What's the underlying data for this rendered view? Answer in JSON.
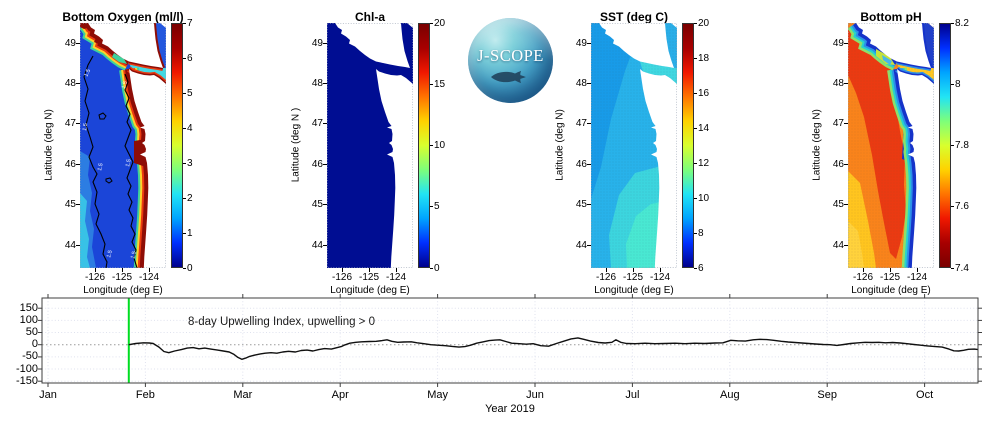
{
  "panels": [
    {
      "title": "Bottom Oxygen (ml/l)",
      "ylabel": "Latitude (deg N)",
      "xlabel": "Longitude (deg E)",
      "yticks": [
        49,
        48,
        47,
        46,
        45,
        44
      ],
      "xticks": [
        -126,
        -125,
        -124
      ],
      "contour_label": "1.5",
      "colorbar": {
        "min": 0,
        "max": 7,
        "reversed": false,
        "ticks": [
          {
            "value": 0,
            "label": "0"
          },
          {
            "value": 1,
            "label": "1"
          },
          {
            "value": 2,
            "label": "2"
          },
          {
            "value": 3,
            "label": "3"
          },
          {
            "value": 4,
            "label": "4"
          },
          {
            "value": 5,
            "label": "5"
          },
          {
            "value": 6,
            "label": "6"
          },
          {
            "value": 7,
            "label": "7"
          }
        ]
      },
      "map_colors": {
        "ocean": "#1b45d8",
        "region1": "#2c7de2",
        "region2": "#38c2e6",
        "band1": "#3ed29b",
        "band2": "#ffd12b",
        "band3": "#ea3a10",
        "band4": "#8e0d06",
        "strait": "#43d8e2",
        "georgia": "#2357de",
        "land": "#ffffff"
      }
    },
    {
      "title": "Chl-a",
      "ylabel": "Latitude (deg N )",
      "xlabel": "Longitude (deg E)",
      "yticks": [
        49,
        48,
        47,
        46,
        45,
        44
      ],
      "xticks": [
        -126,
        -125,
        -124
      ],
      "contour_label": "",
      "colorbar": {
        "min": 0,
        "max": 20,
        "reversed": false,
        "ticks": [
          {
            "value": 0,
            "label": "0"
          },
          {
            "value": 5,
            "label": "5"
          },
          {
            "value": 10,
            "label": "10"
          },
          {
            "value": 15,
            "label": "15"
          },
          {
            "value": 20,
            "label": "20"
          }
        ]
      },
      "map_colors": {
        "ocean": "#000d92",
        "strait": "#000d92",
        "georgia": "#000d92",
        "land": "#ffffff"
      }
    },
    {
      "title": "SST (deg C)",
      "ylabel": "Latitude (deg N)",
      "xlabel": "Longitude (deg E)",
      "yticks": [
        49,
        48,
        47,
        46,
        45,
        44
      ],
      "xticks": [
        -126,
        -125,
        -124
      ],
      "contour_label": "",
      "colorbar": {
        "min": 6,
        "max": 20,
        "reversed": false,
        "ticks": [
          {
            "value": 6,
            "label": "6"
          },
          {
            "value": 8,
            "label": "8"
          },
          {
            "value": 10,
            "label": "10"
          },
          {
            "value": 12,
            "label": "12"
          },
          {
            "value": 14,
            "label": "14"
          },
          {
            "value": 16,
            "label": "16"
          },
          {
            "value": 18,
            "label": "18"
          },
          {
            "value": 20,
            "label": "20"
          }
        ]
      },
      "map_colors": {
        "ocean": "#28b2ea",
        "region1": "#189be8",
        "region2": "#3cd5de",
        "region3": "#49e8d2",
        "strait": "#3fd7e0",
        "georgia": "#2aaee8",
        "land": "#ffffff",
        "stipple": "#33566e"
      }
    },
    {
      "title": "Bottom pH",
      "ylabel": "Latitude (deg N)",
      "xlabel": "Longitude (deg E)",
      "yticks": [
        49,
        48,
        47,
        46,
        45,
        44
      ],
      "xticks": [
        -126,
        -125,
        -124
      ],
      "contour_label": "",
      "colorbar": {
        "min": 7.4,
        "max": 8.2,
        "reversed": true,
        "ticks": [
          {
            "value": 7.4,
            "label": "7.4"
          },
          {
            "value": 7.6,
            "label": "7.6"
          },
          {
            "value": 7.8,
            "label": "7.8"
          },
          {
            "value": 8,
            "label": "8"
          },
          {
            "value": 8.2,
            "label": "8.2"
          }
        ]
      },
      "map_colors": {
        "ocean": "#f9831b",
        "region1": "#ea3a12",
        "region2": "#ffc51f",
        "region3": "#ffd23c",
        "region4": "#1532c8",
        "band0": "#ea3a12",
        "band1": "#8ce06a",
        "band2": "#27d2cc",
        "band3": "#2b8fe8",
        "band4": "#1633c9",
        "entrance1": "#c6e23c",
        "entrance2": "#49b6ea",
        "strait": "#ffc722",
        "georgia": "#2040cc",
        "land": "#ffffff",
        "stipple": "#6b4a2e"
      }
    }
  ],
  "colorbar_stops": [
    "#00008c",
    "#0030ff",
    "#00a4ff",
    "#22e4f4",
    "#7dff7a",
    "#d8ff2e",
    "#ffd200",
    "#ff7400",
    "#f01800",
    "#a80000",
    "#7a0000"
  ],
  "logo": {
    "text": "J-SCOPE"
  },
  "timeseries": {
    "annotation": "8-day Upwelling Index, upwelling > 0",
    "xlabel": "Year 2019",
    "months": [
      "Jan",
      "Feb",
      "Mar",
      "Apr",
      "May",
      "Jun",
      "Jul",
      "Aug",
      "Sep",
      "Oct"
    ],
    "yticks": [
      150,
      100,
      50,
      0,
      -50,
      -100,
      -150
    ],
    "forecast_line": {
      "month": 0.83,
      "color": "#00dd22"
    },
    "line_color": "#101010"
  },
  "chart_data": [
    {
      "type": "heatmap",
      "title": "Bottom Oxygen (ml/l)",
      "xlabel": "Longitude (deg E)",
      "ylabel": "Latitude (deg N)",
      "xlim": [
        -126.6,
        -123.3
      ],
      "ylim": [
        43.4,
        49.5
      ],
      "colorbar_range": [
        0,
        7
      ],
      "colorbar_ticks": [
        0,
        1,
        2,
        3,
        4,
        5,
        6,
        7
      ],
      "colormap": "jet",
      "contour_level": 1.5,
      "summary": "Low oxygen (~1-2 ml/l, blue) offshore bounded by wiggly 1.5 ml/l black contours; high oxygen (6-7, dark red) in a narrow band along the coast, Strait of Juan de Fuca and Vancouver Island shore"
    },
    {
      "type": "heatmap",
      "title": "Chl-a",
      "xlabel": "Longitude (deg E)",
      "ylabel": "Latitude (deg N )",
      "xlim": [
        -126.6,
        -123.3
      ],
      "ylim": [
        43.4,
        49.5
      ],
      "colorbar_range": [
        0,
        20
      ],
      "colorbar_ticks": [
        0,
        5,
        10,
        15,
        20
      ],
      "colormap": "jet",
      "summary": "Near-uniform chlorophyll ~0 mg/m3 (dark navy) over the whole domain"
    },
    {
      "type": "heatmap",
      "title": "SST (deg C)",
      "xlabel": "Longitude (deg E)",
      "ylabel": "Latitude (deg N)",
      "xlim": [
        -126.6,
        -123.3
      ],
      "ylim": [
        43.4,
        49.5
      ],
      "colorbar_range": [
        6,
        20
      ],
      "colorbar_ticks": [
        6,
        8,
        10,
        12,
        14,
        16,
        18,
        20
      ],
      "colormap": "jet",
      "summary": "SST ~9-10 C (blue) in the northwest grading to ~11-12 C (cyan) in the south and nearshore; stippled texture over ocean"
    },
    {
      "type": "heatmap",
      "title": "Bottom pH",
      "xlabel": "Longitude (deg E)",
      "ylabel": "Latitude (deg N)",
      "xlim": [
        -126.6,
        -123.3
      ],
      "ylim": [
        43.4,
        49.5
      ],
      "colorbar_range": [
        7.4,
        8.2
      ],
      "colorbar_ticks": [
        7.4,
        7.6,
        7.8,
        8,
        8.2
      ],
      "colormap": "jet-reversed",
      "summary": "Low pH ~7.5-7.65 (orange/red) offshore with yellow in the south; high pH ~8.0-8.2 (cyan/blue) band hugging the coast and estuaries"
    },
    {
      "type": "line",
      "title": "8-day Upwelling Index, upwelling > 0",
      "xlabel": "Year 2019",
      "x_tick_labels": [
        "Jan",
        "Feb",
        "Mar",
        "Apr",
        "May",
        "Jun",
        "Jul",
        "Aug",
        "Sep",
        "Oct"
      ],
      "ylim": [
        -150,
        150
      ],
      "yticks": [
        150,
        100,
        50,
        0,
        -50,
        -100,
        -150
      ],
      "grid": true,
      "zero_line": "dotted",
      "annotations": [
        {
          "text": "green vertical marker at late January (forecast start)",
          "x_month": 0.83
        }
      ],
      "series": [
        {
          "name": "8-day Upwelling Index",
          "x_unit": "months after Jan tick (0=Jan, 1=Feb, ...)",
          "points": [
            [
              0.83,
              0
            ],
            [
              0.9,
              5
            ],
            [
              0.98,
              8
            ],
            [
              1.04,
              7
            ],
            [
              1.08,
              5
            ],
            [
              1.14,
              -10
            ],
            [
              1.19,
              -28
            ],
            [
              1.24,
              -33
            ],
            [
              1.3,
              -26
            ],
            [
              1.37,
              -20
            ],
            [
              1.43,
              -14
            ],
            [
              1.49,
              -12
            ],
            [
              1.55,
              -17
            ],
            [
              1.61,
              -14
            ],
            [
              1.67,
              -18
            ],
            [
              1.74,
              -22
            ],
            [
              1.8,
              -26
            ],
            [
              1.86,
              -30
            ],
            [
              1.91,
              -40
            ],
            [
              1.95,
              -52
            ],
            [
              1.99,
              -60
            ],
            [
              2.03,
              -55
            ],
            [
              2.07,
              -48
            ],
            [
              2.13,
              -42
            ],
            [
              2.18,
              -38
            ],
            [
              2.23,
              -35
            ],
            [
              2.29,
              -33
            ],
            [
              2.35,
              -35
            ],
            [
              2.41,
              -30
            ],
            [
              2.47,
              -27
            ],
            [
              2.54,
              -30
            ],
            [
              2.6,
              -24
            ],
            [
              2.66,
              -22
            ],
            [
              2.72,
              -26
            ],
            [
              2.78,
              -20
            ],
            [
              2.84,
              -16
            ],
            [
              2.91,
              -18
            ],
            [
              2.97,
              -12
            ],
            [
              3.01,
              -8
            ],
            [
              3.04,
              -2
            ],
            [
              3.1,
              6
            ],
            [
              3.16,
              10
            ],
            [
              3.22,
              12
            ],
            [
              3.3,
              13
            ],
            [
              3.37,
              14
            ],
            [
              3.43,
              17
            ],
            [
              3.48,
              20
            ],
            [
              3.53,
              14
            ],
            [
              3.59,
              10
            ],
            [
              3.65,
              11
            ],
            [
              3.73,
              12
            ],
            [
              3.79,
              8
            ],
            [
              3.86,
              4
            ],
            [
              3.93,
              0
            ],
            [
              4.0,
              -2
            ],
            [
              4.08,
              -4
            ],
            [
              4.15,
              -7
            ],
            [
              4.22,
              -10
            ],
            [
              4.28,
              -8
            ],
            [
              4.34,
              -2
            ],
            [
              4.4,
              6
            ],
            [
              4.47,
              12
            ],
            [
              4.53,
              17
            ],
            [
              4.59,
              19
            ],
            [
              4.64,
              20
            ],
            [
              4.7,
              13
            ],
            [
              4.76,
              6
            ],
            [
              4.84,
              4
            ],
            [
              4.91,
              2
            ],
            [
              4.98,
              4
            ],
            [
              5.06,
              -4
            ],
            [
              5.14,
              -6
            ],
            [
              5.22,
              5
            ],
            [
              5.3,
              15
            ],
            [
              5.37,
              24
            ],
            [
              5.44,
              28
            ],
            [
              5.5,
              22
            ],
            [
              5.57,
              15
            ],
            [
              5.65,
              9
            ],
            [
              5.72,
              7
            ],
            [
              5.79,
              10
            ],
            [
              5.83,
              20
            ],
            [
              5.88,
              10
            ],
            [
              5.94,
              5
            ],
            [
              6.03,
              4
            ],
            [
              6.13,
              6
            ],
            [
              6.23,
              4
            ],
            [
              6.33,
              5
            ],
            [
              6.44,
              6
            ],
            [
              6.54,
              4
            ],
            [
              6.64,
              6
            ],
            [
              6.74,
              5
            ],
            [
              6.85,
              7
            ],
            [
              6.93,
              8
            ],
            [
              7.01,
              18
            ],
            [
              7.08,
              16
            ],
            [
              7.16,
              15
            ],
            [
              7.24,
              20
            ],
            [
              7.31,
              22
            ],
            [
              7.38,
              21
            ],
            [
              7.45,
              18
            ],
            [
              7.53,
              14
            ],
            [
              7.6,
              11
            ],
            [
              7.67,
              9
            ],
            [
              7.74,
              7
            ],
            [
              7.81,
              5
            ],
            [
              7.88,
              3
            ],
            [
              7.96,
              1
            ],
            [
              8.03,
              0
            ],
            [
              8.1,
              -3
            ],
            [
              8.17,
              1
            ],
            [
              8.24,
              5
            ],
            [
              8.32,
              8
            ],
            [
              8.39,
              10
            ],
            [
              8.46,
              9
            ],
            [
              8.53,
              10
            ],
            [
              8.6,
              8
            ],
            [
              8.67,
              9
            ],
            [
              8.75,
              7
            ],
            [
              8.82,
              4
            ],
            [
              8.89,
              1
            ],
            [
              8.96,
              -2
            ],
            [
              9.03,
              -5
            ],
            [
              9.11,
              -8
            ],
            [
              9.18,
              -10
            ],
            [
              9.25,
              -18
            ],
            [
              9.3,
              -25
            ],
            [
              9.35,
              -26
            ],
            [
              9.4,
              -23
            ],
            [
              9.45,
              -19
            ],
            [
              9.51,
              -18
            ],
            [
              9.55,
              -20
            ]
          ]
        }
      ]
    }
  ]
}
